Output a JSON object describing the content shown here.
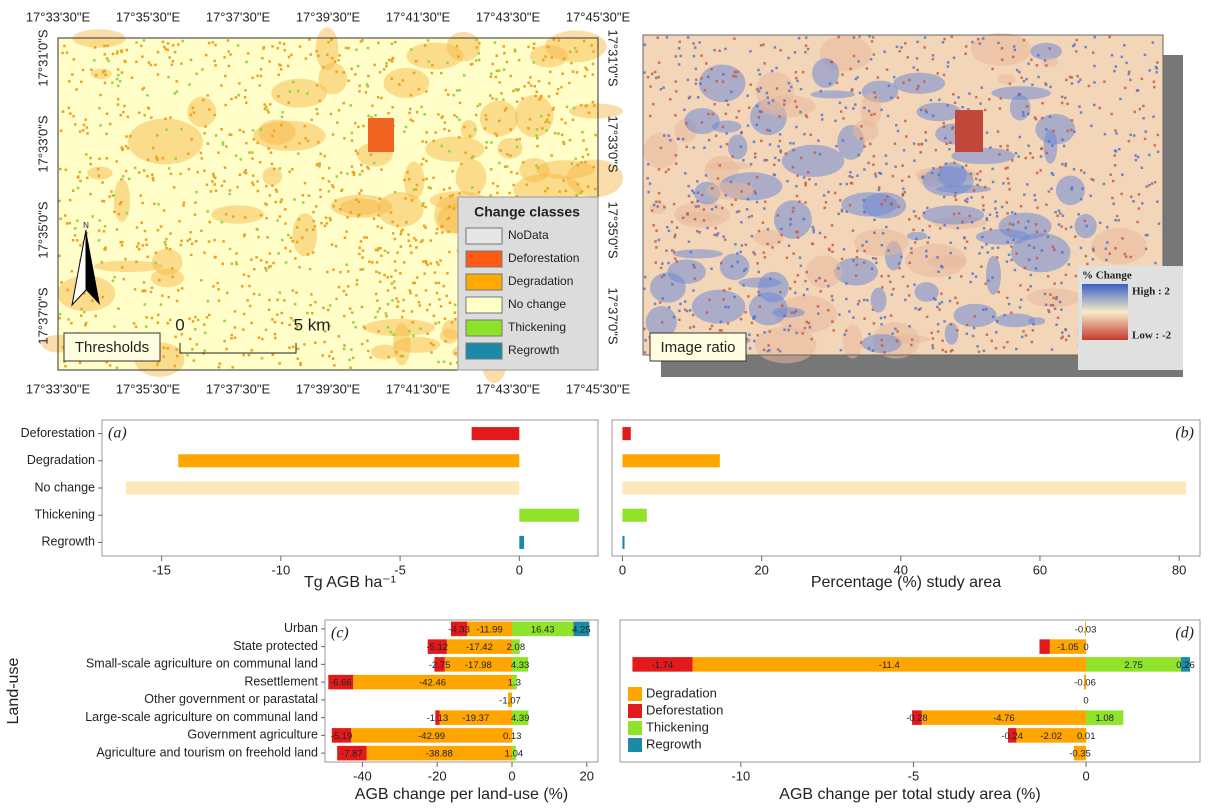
{
  "maps": {
    "lon_labels": [
      "17°33'30\"E",
      "17°35'30\"E",
      "17°37'30\"E",
      "17°39'30\"E",
      "17°41'30\"E",
      "17°43'30\"E",
      "17°45'30\"E"
    ],
    "lat_labels": [
      "17°31'0\"S",
      "17°33'0\"S",
      "17°35'0\"S",
      "17°37'0\"S"
    ],
    "left": {
      "label": "Thresholds",
      "north": "N",
      "scale_start": "0",
      "scale_end": "5 km",
      "legend_title": "Change classes",
      "legend": [
        {
          "name": "NoData",
          "color": "#e6e6e6"
        },
        {
          "name": "Deforestation",
          "color": "#ff5a14"
        },
        {
          "name": "Degradation",
          "color": "#ffaa00"
        },
        {
          "name": "No change",
          "color": "#ffffc8"
        },
        {
          "name": "Thickening",
          "color": "#8ee32a"
        },
        {
          "name": "Regrowth",
          "color": "#1a8aa8"
        }
      ]
    },
    "right": {
      "label": "Image ratio",
      "legend_title": "% Change",
      "high": "High : 2",
      "low": "Low : -2"
    }
  },
  "chart_data": [
    {
      "type": "bar",
      "panel": "(a)",
      "xlabel": "Tg AGB ha⁻¹",
      "categories": [
        "Deforestation",
        "Degradation",
        "No change",
        "Thickening",
        "Regrowth"
      ],
      "values": [
        -2,
        -14.3,
        -16.5,
        2.5,
        0.2
      ],
      "colors": [
        "#e31a1c",
        "#ffa500",
        "#fde8b8",
        "#8fe32a",
        "#1a8aa8"
      ],
      "xlim": [
        -17.5,
        3.3
      ],
      "xticks": [
        -15,
        -10,
        -5,
        0
      ]
    },
    {
      "type": "bar",
      "panel": "(b)",
      "xlabel": "Percentage (%) study area",
      "values": [
        1.2,
        14,
        81,
        3.5,
        0.3
      ],
      "colors": [
        "#e31a1c",
        "#ffa500",
        "#fde8b8",
        "#8fe32a",
        "#1a8aa8"
      ],
      "xlim": [
        -1.5,
        83
      ],
      "xticks": [
        0,
        20,
        40,
        60,
        80
      ]
    },
    {
      "type": "stacked_bar",
      "panel": "(c)",
      "xlabel": "AGB change per land-use (%)",
      "ylabel": "Land-use",
      "categories": [
        "Urban",
        "State protected",
        "Small-scale agriculture on communal land",
        "Resettlement",
        "Other government or parastatal",
        "Large-scale agriculture on communal land",
        "Government agriculture",
        "Agriculture and tourism on freehold land"
      ],
      "series": [
        {
          "name": "Degradation",
          "color": "#ffa500",
          "values": [
            -11.99,
            -17.42,
            -17.98,
            -42.46,
            -1.07,
            -19.37,
            -42.99,
            -38.88
          ]
        },
        {
          "name": "Deforestation",
          "color": "#e31a1c",
          "values": [
            -4.33,
            -5.12,
            -2.75,
            -6.66,
            null,
            -1.13,
            -5.19,
            -7.87
          ]
        },
        {
          "name": "Thickening",
          "color": "#8fe32a",
          "values": [
            16.43,
            2.08,
            4.33,
            1.3,
            null,
            4.39,
            0.13,
            1.04
          ]
        },
        {
          "name": "Regrowth",
          "color": "#1a8aa8",
          "values": [
            4.25,
            null,
            null,
            null,
            null,
            null,
            null,
            null
          ]
        }
      ],
      "xlim": [
        -50,
        23
      ],
      "xticks": [
        -40,
        -20,
        0,
        20
      ]
    },
    {
      "type": "stacked_bar",
      "panel": "(d)",
      "xlabel": "AGB change per total study area (%)",
      "legend": true,
      "series": [
        {
          "name": "Degradation",
          "color": "#ffa500",
          "values": [
            -0.03,
            -1.05,
            -11.4,
            -0.06,
            null,
            -4.76,
            -2.02,
            -0.35
          ]
        },
        {
          "name": "Deforestation",
          "color": "#e31a1c",
          "values": [
            null,
            -0.3,
            -1.74,
            null,
            null,
            -0.28,
            -0.24,
            null
          ],
          "value_labels": [
            null,
            null,
            "-1.74",
            null,
            null,
            "-0.28",
            "-0.24",
            null
          ]
        },
        {
          "name": "Thickening",
          "color": "#8fe32a",
          "values": [
            null,
            0,
            2.75,
            null,
            0,
            1.08,
            0.01,
            null
          ]
        },
        {
          "name": "Regrowth",
          "color": "#1a8aa8",
          "values": [
            null,
            null,
            0.26,
            null,
            null,
            null,
            null,
            null
          ]
        }
      ],
      "xlim": [
        -13.5,
        3.3
      ],
      "xticks": [
        -10,
        -5,
        0
      ]
    }
  ]
}
